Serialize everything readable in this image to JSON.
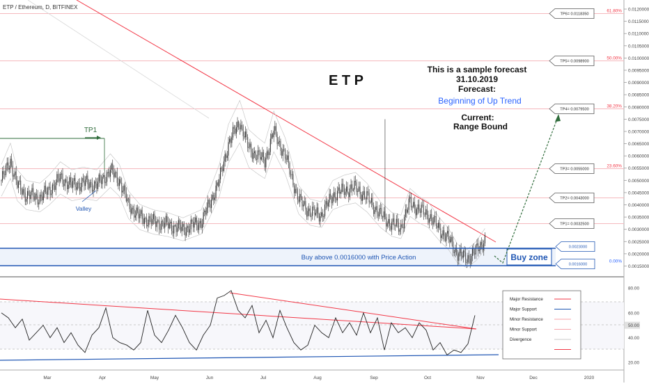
{
  "header": {
    "symbol_label": "ETP / Ethereum, D, BITFINEX"
  },
  "title": {
    "ticker": "E T P"
  },
  "forecast": {
    "line1": "This is a sample forecast",
    "line2": "31.10.2019",
    "line3": "Forecast:",
    "line4": "Beginning of Up Trend",
    "line5": "Current:",
    "line6": "Range Bound"
  },
  "annotations": {
    "tp1": "TP1",
    "valley": "Valley",
    "buy_text": "Buy above 0.0016000 with Price Action",
    "buy_zone": "Buy zone"
  },
  "colors": {
    "up": "#2b2b2b",
    "down": "#2b2b2b",
    "major_resistance": "#f23645",
    "major_support": "#1e55b3",
    "minor_resistance": "#f7a3aa",
    "minor_support": "#f7a3aa",
    "divergence": "#c8c8c8",
    "accent_blue": "#2962ff",
    "green_arrow": "#2e6b3a"
  },
  "chart_data": [
    {
      "type": "candlestick",
      "title": "ETP / Ethereum, D, BITFINEX",
      "x_months": [
        "Mar",
        "Apr",
        "May",
        "Jun",
        "Jul",
        "Aug",
        "Sep",
        "Oct",
        "Nov",
        "Dec",
        "2020"
      ],
      "y_ticks": [
        "0.0120000",
        "0.0115000",
        "0.0110000",
        "0.0105000",
        "0.0100000",
        "0.0095000",
        "0.0090000",
        "0.0085000",
        "0.0080000",
        "0.0075000",
        "0.0070000",
        "0.0065000",
        "0.0060000",
        "0.0055000",
        "0.0050000",
        "0.0045000",
        "0.0040000",
        "0.0035000",
        "0.0030000",
        "0.0025000",
        "0.0020000",
        "0.0015000"
      ],
      "ylim": [
        0.0014,
        0.0122
      ],
      "price_path": [
        [
          0,
          0.005
        ],
        [
          8,
          0.0058
        ],
        [
          14,
          0.0048
        ],
        [
          22,
          0.0044
        ],
        [
          34,
          0.0043
        ],
        [
          42,
          0.0046
        ],
        [
          52,
          0.0051
        ],
        [
          62,
          0.0048
        ],
        [
          72,
          0.0049
        ],
        [
          84,
          0.0048
        ],
        [
          96,
          0.0054
        ],
        [
          104,
          0.005
        ],
        [
          112,
          0.004
        ],
        [
          122,
          0.0035
        ],
        [
          134,
          0.0033
        ],
        [
          146,
          0.0032
        ],
        [
          160,
          0.003
        ],
        [
          176,
          0.0033
        ],
        [
          184,
          0.0041
        ],
        [
          192,
          0.005
        ],
        [
          200,
          0.0065
        ],
        [
          210,
          0.0074
        ],
        [
          218,
          0.0063
        ],
        [
          226,
          0.006
        ],
        [
          232,
          0.0058
        ],
        [
          240,
          0.007
        ],
        [
          250,
          0.006
        ],
        [
          262,
          0.0042
        ],
        [
          272,
          0.0037
        ],
        [
          282,
          0.0036
        ],
        [
          292,
          0.0044
        ],
        [
          302,
          0.0046
        ],
        [
          312,
          0.0047
        ],
        [
          322,
          0.0043
        ],
        [
          334,
          0.0036
        ],
        [
          344,
          0.0032
        ],
        [
          352,
          0.0031
        ],
        [
          360,
          0.0041
        ],
        [
          368,
          0.0038
        ],
        [
          376,
          0.0036
        ],
        [
          386,
          0.003
        ],
        [
          394,
          0.0026
        ],
        [
          402,
          0.002
        ],
        [
          410,
          0.0018
        ],
        [
          418,
          0.0021
        ],
        [
          426,
          0.0026
        ]
      ],
      "levels": [
        {
          "label": "TP6= 0.0118350",
          "value": 0.011835,
          "fib": "61.80%"
        },
        {
          "label": "TP5= 0.0098900",
          "value": 0.00989,
          "fib": "50.00%"
        },
        {
          "label": "TP4= 0.0079500",
          "value": 0.00795,
          "fib": "38.20%"
        },
        {
          "label": "TP3= 0.0055000",
          "value": 0.0055,
          "fib": "23.60%"
        },
        {
          "label": "TP2= 0.0043000",
          "value": 0.0043,
          "fib": ""
        },
        {
          "label": "TP1= 0.0032500",
          "value": 0.00325,
          "fib": ""
        },
        {
          "label": "0.0023000",
          "value": 0.0023,
          "fib": ""
        },
        {
          "label": "0.0016000",
          "value": 0.0016,
          "fib": "0.00%"
        }
      ]
    },
    {
      "type": "line",
      "title": "",
      "y_ticks": [
        "80.00",
        "60.00",
        "50.00",
        "40.00",
        "20.00"
      ],
      "ylim": [
        15,
        88
      ],
      "rsi_path": [
        [
          0,
          60
        ],
        [
          10,
          56
        ],
        [
          20,
          48
        ],
        [
          30,
          55
        ],
        [
          40,
          38
        ],
        [
          50,
          44
        ],
        [
          60,
          50
        ],
        [
          70,
          40
        ],
        [
          80,
          48
        ],
        [
          90,
          36
        ],
        [
          100,
          44
        ],
        [
          110,
          34
        ],
        [
          120,
          28
        ],
        [
          130,
          42
        ],
        [
          140,
          48
        ],
        [
          150,
          64
        ],
        [
          160,
          40
        ],
        [
          170,
          36
        ],
        [
          180,
          34
        ],
        [
          190,
          30
        ],
        [
          200,
          36
        ],
        [
          210,
          62
        ],
        [
          220,
          42
        ],
        [
          230,
          36
        ],
        [
          240,
          46
        ],
        [
          250,
          58
        ],
        [
          260,
          48
        ],
        [
          270,
          36
        ],
        [
          280,
          30
        ],
        [
          290,
          42
        ],
        [
          300,
          50
        ],
        [
          310,
          72
        ],
        [
          320,
          74
        ],
        [
          330,
          78
        ],
        [
          340,
          62
        ],
        [
          350,
          56
        ],
        [
          360,
          66
        ],
        [
          370,
          44
        ],
        [
          380,
          54
        ],
        [
          390,
          40
        ],
        [
          400,
          62
        ],
        [
          410,
          48
        ],
        [
          420,
          36
        ],
        [
          430,
          30
        ],
        [
          440,
          34
        ],
        [
          450,
          50
        ],
        [
          460,
          44
        ],
        [
          470,
          40
        ],
        [
          480,
          56
        ],
        [
          490,
          44
        ],
        [
          500,
          52
        ],
        [
          510,
          42
        ],
        [
          520,
          60
        ],
        [
          530,
          44
        ],
        [
          540,
          56
        ],
        [
          550,
          30
        ],
        [
          560,
          52
        ],
        [
          570,
          44
        ],
        [
          580,
          48
        ],
        [
          590,
          40
        ],
        [
          600,
          52
        ],
        [
          610,
          46
        ],
        [
          620,
          30
        ],
        [
          630,
          36
        ],
        [
          640,
          26
        ],
        [
          650,
          30
        ],
        [
          660,
          28
        ],
        [
          670,
          35
        ],
        [
          680,
          58
        ]
      ]
    }
  ],
  "legend": [
    {
      "label": "Major Resistance",
      "color": "#f23645"
    },
    {
      "label": "Major Support",
      "color": "#1e55b3"
    },
    {
      "label": "Minor Resistance",
      "color": "#f7a3aa"
    },
    {
      "label": "Minor Support",
      "color": "#f7a3aa"
    },
    {
      "label": "Divergence",
      "color": "#c8c8c8"
    },
    {
      "label": "",
      "color": "#f23645"
    }
  ]
}
